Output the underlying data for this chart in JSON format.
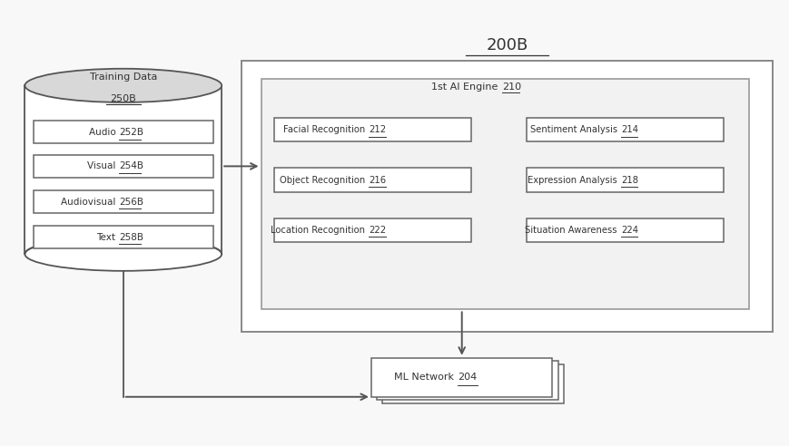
{
  "bg_color": "#f8f8f8",
  "title_200B": "200B",
  "title_training": "Training Data",
  "label_250B": "250B",
  "db_boxes": [
    "Audio 252B",
    "Visual 254B",
    "Audiovisual 256B",
    "Text 258B"
  ],
  "ai_engine_label": "1st AI Engine 210",
  "ai_engine_num": "210",
  "ai_boxes_left": [
    "Facial Recognition 212",
    "Object Recognition 216",
    "Location Recognition 222"
  ],
  "ai_boxes_right": [
    "Sentiment Analysis 214",
    "Expression Analysis 218",
    "Situation Awareness 224"
  ],
  "ml_label": "ML Network 204",
  "line_color": "#555555",
  "box_face": "#ffffff",
  "box_edge": "#666666",
  "text_color": "#333333"
}
